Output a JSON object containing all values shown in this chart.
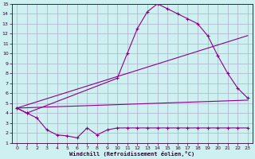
{
  "bg_color": "#cff0f0",
  "grid_color": "#b0b0cc",
  "line_color": "#880088",
  "xlabel": "Windchill (Refroidissement éolien,°C)",
  "xlim": [
    -0.5,
    23.5
  ],
  "ylim": [
    1,
    15
  ],
  "xticks": [
    0,
    1,
    2,
    3,
    4,
    5,
    6,
    7,
    8,
    9,
    10,
    11,
    12,
    13,
    14,
    15,
    16,
    17,
    18,
    19,
    20,
    21,
    22,
    23
  ],
  "yticks": [
    1,
    2,
    3,
    4,
    5,
    6,
    7,
    8,
    9,
    10,
    11,
    12,
    13,
    14,
    15
  ],
  "curve1_x": [
    0,
    1,
    2,
    3,
    4,
    5,
    6,
    7,
    8,
    9,
    10,
    11,
    12,
    13,
    14,
    15,
    16,
    17,
    18,
    19,
    20,
    21,
    22,
    23
  ],
  "curve1_y": [
    4.5,
    4.0,
    3.5,
    2.3,
    1.8,
    1.7,
    1.5,
    2.5,
    1.8,
    2.3,
    2.5,
    2.5,
    2.5,
    2.5,
    2.5,
    2.5,
    2.5,
    2.5,
    2.5,
    2.5,
    2.5,
    2.5,
    2.5,
    2.5
  ],
  "curve2_x": [
    0,
    23
  ],
  "curve2_y": [
    4.5,
    5.3
  ],
  "curve3_x": [
    0,
    1,
    10,
    11,
    12,
    13,
    14,
    15,
    16,
    17,
    18,
    19,
    20,
    21,
    22,
    23
  ],
  "curve3_y": [
    4.5,
    4.0,
    7.5,
    10.0,
    12.5,
    14.2,
    15.0,
    14.5,
    14.0,
    13.5,
    13.0,
    11.8,
    9.8,
    8.0,
    6.5,
    5.5
  ],
  "curve4_x": [
    0,
    23
  ],
  "curve4_y": [
    4.5,
    11.8
  ]
}
